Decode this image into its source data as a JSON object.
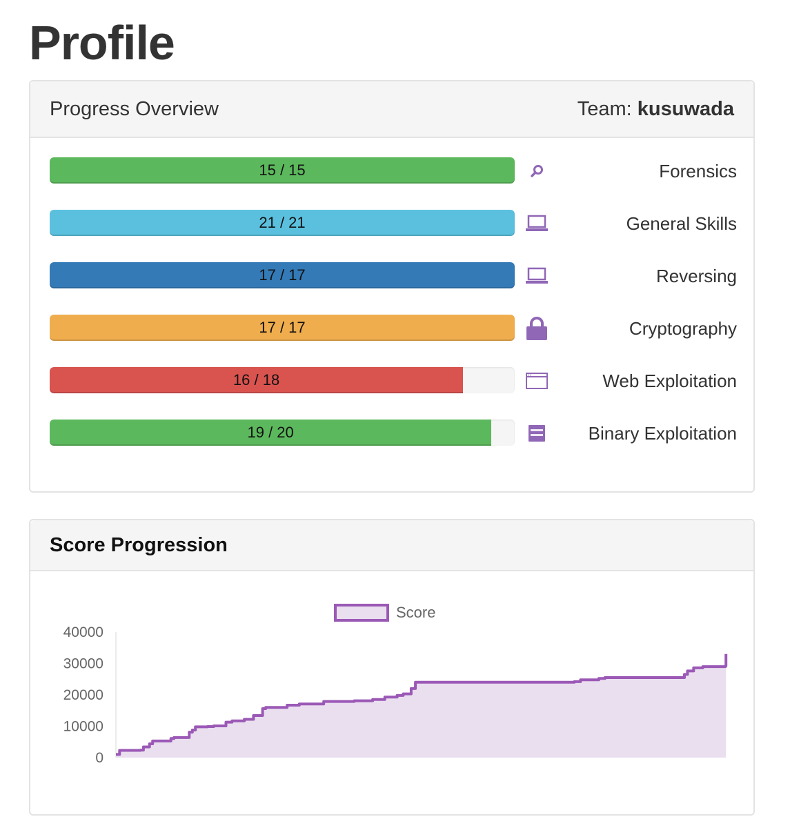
{
  "page_title": "Profile",
  "progress_panel": {
    "title": "Progress Overview",
    "team_prefix": "Team:",
    "team_name": "kusuwada",
    "categories": [
      {
        "label": "Forensics",
        "text": "15 / 15",
        "solved": 15,
        "total": 15,
        "color": "#5cb85c",
        "icon": "search-icon"
      },
      {
        "label": "General Skills",
        "text": "21 / 21",
        "solved": 21,
        "total": 21,
        "color": "#5bc0de",
        "icon": "laptop-icon"
      },
      {
        "label": "Reversing",
        "text": "17 / 17",
        "solved": 17,
        "total": 17,
        "color": "#337ab7",
        "icon": "laptop-icon"
      },
      {
        "label": "Cryptography",
        "text": "17 / 17",
        "solved": 17,
        "total": 17,
        "color": "#f0ad4e",
        "icon": "lock-icon"
      },
      {
        "label": "Web Exploitation",
        "text": "16 / 18",
        "solved": 16,
        "total": 18,
        "color": "#d9534f",
        "icon": "browser-window-icon"
      },
      {
        "label": "Binary Exploitation",
        "text": "19 / 20",
        "solved": 19,
        "total": 20,
        "color": "#5cb85c",
        "icon": "binary-icon"
      }
    ],
    "icon_color": "#9067b6"
  },
  "score_panel": {
    "title": "Score Progression"
  },
  "chart_data": {
    "type": "area",
    "title": "",
    "xlabel": "",
    "ylabel": "",
    "ylim": [
      0,
      40000
    ],
    "y_ticks": [
      "40000",
      "30000",
      "20000",
      "10000",
      "0"
    ],
    "x_range": [
      0,
      100
    ],
    "grid": false,
    "legend_position": "top-center",
    "series": [
      {
        "name": "Score",
        "line_color": "#9b59b6",
        "fill_color": "#eadfef",
        "x": [
          0,
          0.6,
          4,
          4.5,
          5.5,
          6,
          9,
          9.5,
          12,
          12.5,
          13,
          15,
          16,
          18,
          19,
          21,
          22.5,
          24,
          24.5,
          28,
          30,
          34,
          39,
          42,
          44,
          46,
          47,
          48.3,
          49,
          75,
          76,
          79,
          80,
          93,
          93.5,
          94.5,
          96,
          99.7,
          99.8
        ],
        "y": [
          1000,
          2300,
          2400,
          3400,
          4400,
          5300,
          6100,
          6400,
          8100,
          8800,
          9800,
          9900,
          10100,
          11300,
          11700,
          12200,
          13400,
          15600,
          16000,
          16700,
          17100,
          17900,
          18100,
          18500,
          19300,
          19800,
          20300,
          22000,
          24000,
          24200,
          24800,
          25200,
          25500,
          26500,
          27600,
          28600,
          29000,
          29200,
          33000
        ]
      }
    ]
  }
}
